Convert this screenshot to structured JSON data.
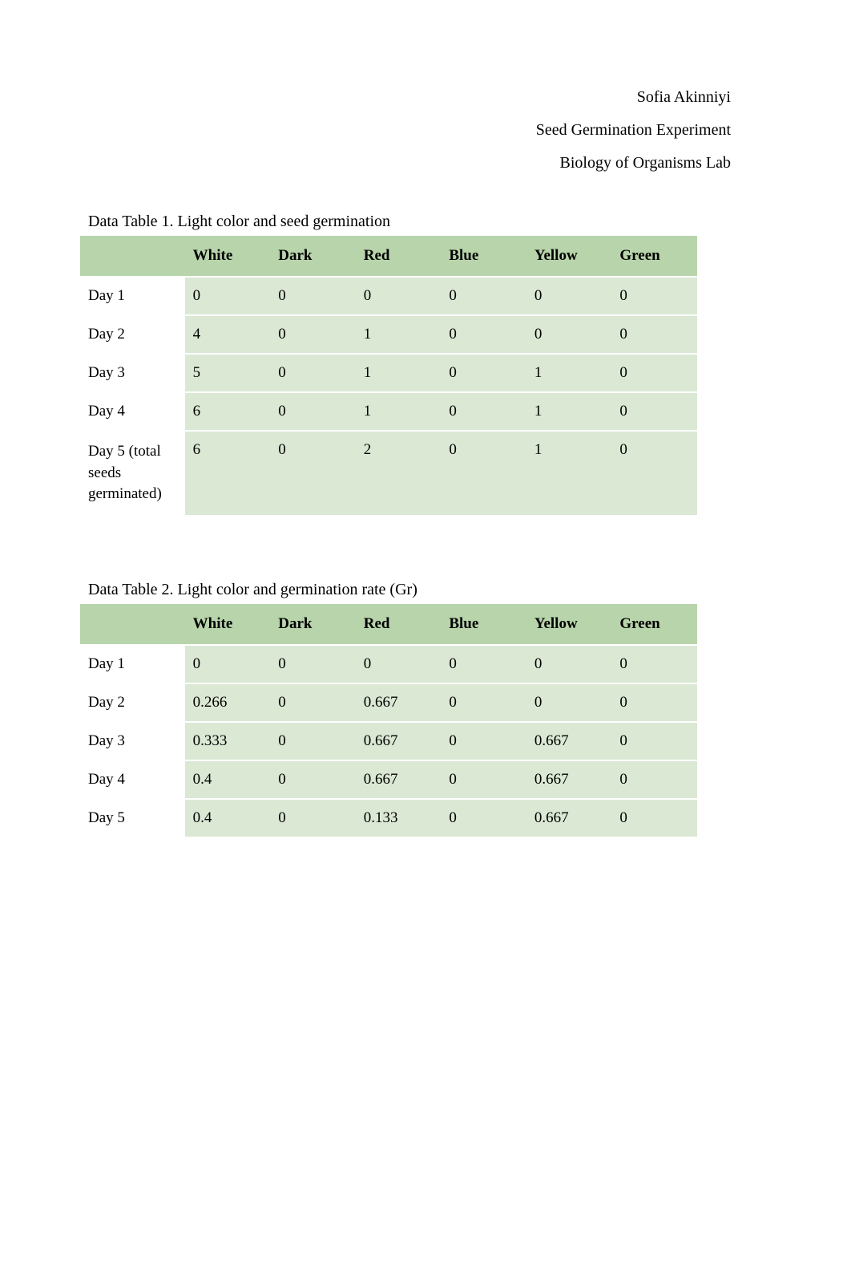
{
  "header": {
    "author": "Sofia Akinniyi",
    "title": "Seed Germination Experiment",
    "course": "Biology of Organisms Lab"
  },
  "table1": {
    "caption": "Data Table 1. Light color and seed germination",
    "columns": [
      "White",
      "Dark",
      "Red",
      "Blue",
      "Yellow",
      "Green"
    ],
    "rows": [
      {
        "label": "Day 1",
        "values": [
          "0",
          "0",
          "0",
          "0",
          "0",
          "0"
        ]
      },
      {
        "label": "Day 2",
        "values": [
          "4",
          "0",
          "1",
          "0",
          "0",
          "0"
        ]
      },
      {
        "label": "Day 3",
        "values": [
          "5",
          "0",
          "1",
          "0",
          "1",
          "0"
        ]
      },
      {
        "label": "Day 4",
        "values": [
          "6",
          "0",
          "1",
          "0",
          "1",
          "0"
        ]
      },
      {
        "label": "Day 5 (total seeds germinated)",
        "values": [
          "6",
          "0",
          "2",
          "0",
          "1",
          "0"
        ]
      }
    ],
    "header_bg": "#b8d4ab",
    "cell_bg": "#dbe8d4",
    "row_label_bg": "#ffffff",
    "border_color": "#ffffff",
    "font_size": 19
  },
  "table2": {
    "caption": "Data Table 2. Light color and germination rate (Gr)",
    "columns": [
      "White",
      "Dark",
      "Red",
      "Blue",
      "Yellow",
      "Green"
    ],
    "rows": [
      {
        "label": "Day 1",
        "values": [
          "0",
          "0",
          "0",
          "0",
          "0",
          "0"
        ]
      },
      {
        "label": "Day 2",
        "values": [
          "0.266",
          "0",
          "0.667",
          "0",
          "0",
          "0"
        ]
      },
      {
        "label": "Day 3",
        "values": [
          "0.333",
          "0",
          "0.667",
          "0",
          "0.667",
          "0"
        ]
      },
      {
        "label": "Day 4",
        "values": [
          "0.4",
          "0",
          "0.667",
          "0",
          "0.667",
          "0"
        ]
      },
      {
        "label": "Day 5",
        "values": [
          "0.4",
          "0",
          "0.133",
          "0",
          "0.667",
          "0"
        ]
      }
    ],
    "header_bg": "#b8d4ab",
    "cell_bg": "#dbe8d4",
    "row_label_bg": "#ffffff",
    "border_color": "#ffffff",
    "font_size": 19
  },
  "styling": {
    "page_bg": "#ffffff",
    "text_color": "#000000",
    "font_family": "Times New Roman",
    "header_font_size": 20,
    "caption_font_size": 20
  }
}
